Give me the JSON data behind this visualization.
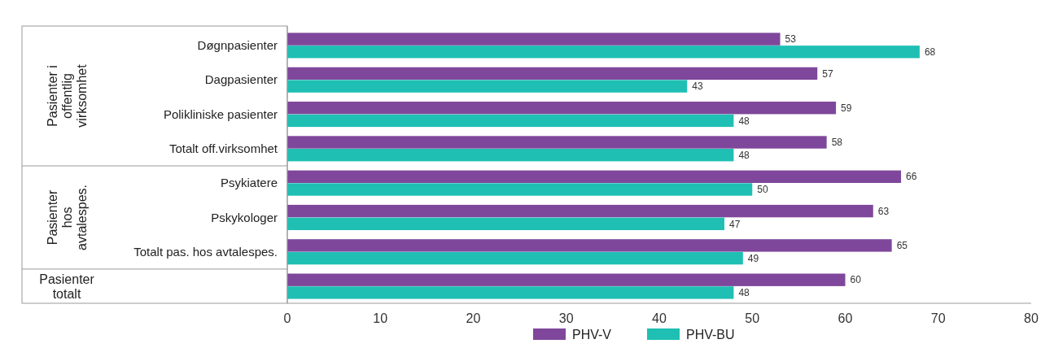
{
  "chart_data": {
    "type": "bar",
    "orientation": "horizontal",
    "categories": [
      "Døgnpasienter",
      "Dagpasienter",
      "Polikliniske pasienter",
      "Totalt off.virksomhet",
      "Psykiatere",
      "Pskykologer",
      "Totalt pas. hos avtalespes.",
      null
    ],
    "series": [
      {
        "name": "PHV-V",
        "color": "#7f479b",
        "values": [
          53,
          57,
          59,
          58,
          66,
          63,
          65,
          60
        ]
      },
      {
        "name": "PHV-BU",
        "color": "#1fbfb4",
        "values": [
          68,
          43,
          48,
          48,
          50,
          47,
          49,
          48
        ]
      }
    ],
    "xlim": [
      0,
      80
    ],
    "xticks": [
      0,
      10,
      20,
      30,
      40,
      50,
      60,
      70,
      80
    ],
    "data_labels": true,
    "legend": "bottom",
    "grid": false,
    "annotations": [
      "Pasienter i offentlig virksomhet",
      "Pasienter hos avtalespes.",
      "Pasienter totalt"
    ]
  }
}
